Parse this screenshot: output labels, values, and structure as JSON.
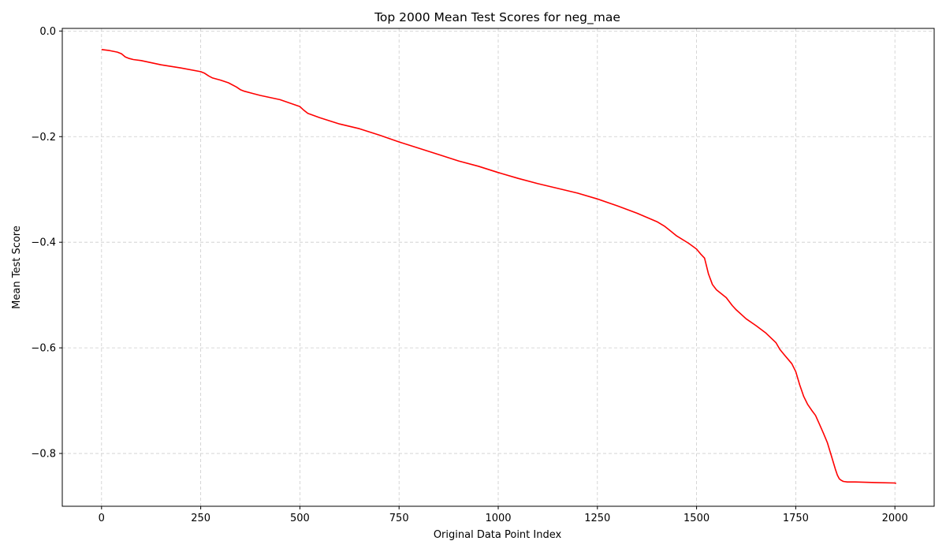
{
  "chart_data": {
    "type": "line",
    "title": "Top 2000 Mean Test Scores for neg_mae",
    "xlabel": "Original Data Point Index",
    "ylabel": "Mean Test Score",
    "xlim": [
      -99,
      2099
    ],
    "ylim": [
      -0.9,
      0.005
    ],
    "xticks": [
      0,
      250,
      500,
      750,
      1000,
      1250,
      1500,
      1750,
      2000
    ],
    "xtick_labels": [
      "0",
      "250",
      "500",
      "750",
      "1000",
      "1250",
      "1500",
      "1750",
      "2000"
    ],
    "yticks": [
      0.0,
      -0.2,
      -0.4,
      -0.6,
      -0.8
    ],
    "ytick_labels": [
      "0.0",
      "−0.2",
      "−0.4",
      "−0.6",
      "−0.8"
    ],
    "grid": true,
    "legend": "none",
    "series": [
      {
        "color": "#ff0000",
        "x": [
          0,
          20,
          40,
          50,
          60,
          70,
          80,
          100,
          150,
          200,
          250,
          260,
          270,
          280,
          300,
          320,
          340,
          350,
          360,
          380,
          400,
          450,
          500,
          510,
          520,
          550,
          600,
          650,
          700,
          750,
          800,
          850,
          900,
          950,
          1000,
          1050,
          1100,
          1150,
          1200,
          1250,
          1300,
          1350,
          1400,
          1420,
          1430,
          1450,
          1480,
          1500,
          1510,
          1520,
          1525,
          1530,
          1540,
          1550,
          1575,
          1590,
          1600,
          1625,
          1650,
          1675,
          1700,
          1710,
          1720,
          1740,
          1750,
          1760,
          1770,
          1780,
          1790,
          1800,
          1810,
          1820,
          1830,
          1840,
          1850,
          1855,
          1860,
          1865,
          1870,
          1880,
          1900,
          1950,
          2000,
          2003
        ],
        "y": [
          -0.035,
          -0.037,
          -0.04,
          -0.043,
          -0.049,
          -0.052,
          -0.054,
          -0.056,
          -0.064,
          -0.07,
          -0.077,
          -0.08,
          -0.085,
          -0.089,
          -0.093,
          -0.098,
          -0.106,
          -0.111,
          -0.114,
          -0.118,
          -0.122,
          -0.13,
          -0.143,
          -0.15,
          -0.156,
          -0.164,
          -0.176,
          -0.185,
          -0.197,
          -0.21,
          -0.222,
          -0.234,
          -0.246,
          -0.256,
          -0.268,
          -0.279,
          -0.289,
          -0.298,
          -0.307,
          -0.318,
          -0.331,
          -0.345,
          -0.361,
          -0.37,
          -0.376,
          -0.388,
          -0.402,
          -0.413,
          -0.422,
          -0.43,
          -0.445,
          -0.46,
          -0.48,
          -0.49,
          -0.505,
          -0.52,
          -0.528,
          -0.545,
          -0.558,
          -0.572,
          -0.59,
          -0.603,
          -0.612,
          -0.63,
          -0.645,
          -0.67,
          -0.692,
          -0.707,
          -0.718,
          -0.728,
          -0.745,
          -0.762,
          -0.78,
          -0.805,
          -0.83,
          -0.841,
          -0.848,
          -0.851,
          -0.853,
          -0.854,
          -0.854,
          -0.855,
          -0.856,
          -0.857
        ]
      }
    ]
  }
}
